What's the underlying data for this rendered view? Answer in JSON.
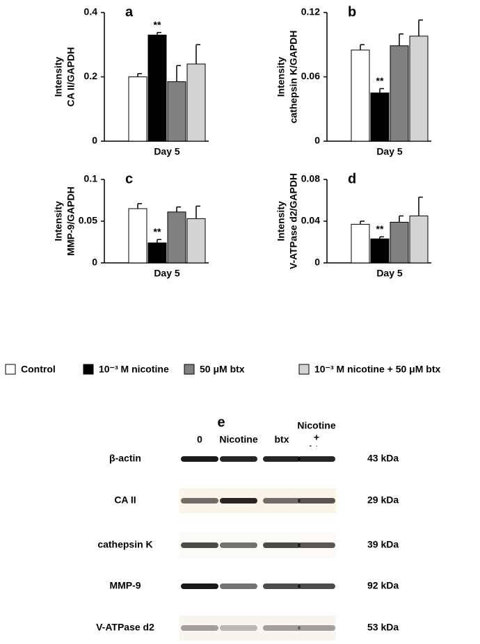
{
  "chart_data": [
    {
      "type": "bar",
      "label": "a",
      "ylabel": [
        "Intensity",
        "CA II/GAPDH"
      ],
      "xlabel": "Day 5",
      "ylim": [
        0,
        0.4
      ],
      "yticks": [
        0,
        0.2,
        0.4
      ],
      "series": [
        {
          "color": "#ffffff",
          "values": [
            0.2
          ],
          "errors": [
            0.01
          ]
        },
        {
          "color": "#000000",
          "values": [
            0.33
          ],
          "errors": [
            0.008
          ]
        },
        {
          "color": "#808080",
          "values": [
            0.185
          ],
          "errors": [
            0.05
          ]
        },
        {
          "color": "#d3d3d3",
          "values": [
            0.24
          ],
          "errors": [
            0.06
          ]
        }
      ],
      "bar_annotations": [
        null,
        "**",
        null,
        null
      ]
    },
    {
      "type": "bar",
      "label": "b",
      "ylabel": [
        "Intensity",
        "cathepsin K/GAPDH"
      ],
      "xlabel": "Day 5",
      "ylim": [
        0,
        0.12
      ],
      "yticks": [
        0,
        0.06,
        0.12
      ],
      "series": [
        {
          "color": "#ffffff",
          "values": [
            0.085
          ],
          "errors": [
            0.005
          ]
        },
        {
          "color": "#000000",
          "values": [
            0.045
          ],
          "errors": [
            0.004
          ]
        },
        {
          "color": "#808080",
          "values": [
            0.089
          ],
          "errors": [
            0.011
          ]
        },
        {
          "color": "#d3d3d3",
          "values": [
            0.098
          ],
          "errors": [
            0.015
          ]
        }
      ],
      "bar_annotations": [
        null,
        "**",
        null,
        null
      ]
    },
    {
      "type": "bar",
      "label": "c",
      "ylabel": [
        "Intensity",
        "MMP-9/GAPDH"
      ],
      "xlabel": "Day 5",
      "ylim": [
        0,
        0.1
      ],
      "yticks": [
        0,
        0.05,
        0.1
      ],
      "series": [
        {
          "color": "#ffffff",
          "values": [
            0.065
          ],
          "errors": [
            0.006
          ]
        },
        {
          "color": "#000000",
          "values": [
            0.024
          ],
          "errors": [
            0.004
          ]
        },
        {
          "color": "#808080",
          "values": [
            0.061
          ],
          "errors": [
            0.006
          ]
        },
        {
          "color": "#d3d3d3",
          "values": [
            0.053
          ],
          "errors": [
            0.015
          ]
        }
      ],
      "bar_annotations": [
        null,
        "**",
        null,
        null
      ]
    },
    {
      "type": "bar",
      "label": "d",
      "ylabel": [
        "Intensity",
        "V-ATPase d2/GAPDH"
      ],
      "xlabel": "Day 5",
      "ylim": [
        0,
        0.08
      ],
      "yticks": [
        0,
        0.04,
        0.08
      ],
      "series": [
        {
          "color": "#ffffff",
          "values": [
            0.037
          ],
          "errors": [
            0.003
          ]
        },
        {
          "color": "#000000",
          "values": [
            0.023
          ],
          "errors": [
            0.002
          ]
        },
        {
          "color": "#808080",
          "values": [
            0.039
          ],
          "errors": [
            0.006
          ]
        },
        {
          "color": "#d3d3d3",
          "values": [
            0.045
          ],
          "errors": [
            0.018
          ]
        }
      ],
      "bar_annotations": [
        null,
        "**",
        null,
        null
      ]
    }
  ],
  "legend": [
    {
      "name": "Control",
      "color": "#ffffff"
    },
    {
      "name": "10⁻³ M nicotine",
      "color": "#000000"
    },
    {
      "name": "50 μM btx",
      "color": "#808080"
    },
    {
      "name": "10⁻³ M nicotine + 50 μM btx",
      "color": "#d3d3d3"
    }
  ],
  "blot": {
    "label": "e",
    "lanes": [
      [
        "0"
      ],
      [
        "Nicotine"
      ],
      [
        "btx"
      ],
      [
        "Nicotine",
        "+",
        "btx"
      ]
    ],
    "rows": [
      {
        "name": "β-actin",
        "size": "43 kDa"
      },
      {
        "name": "CA II",
        "size": "29 kDa"
      },
      {
        "name": "cathepsin K",
        "size": "39 kDa"
      },
      {
        "name": "MMP-9",
        "size": "92 kDa"
      },
      {
        "name": "V-ATPase d2",
        "size": "53 kDa"
      }
    ]
  }
}
